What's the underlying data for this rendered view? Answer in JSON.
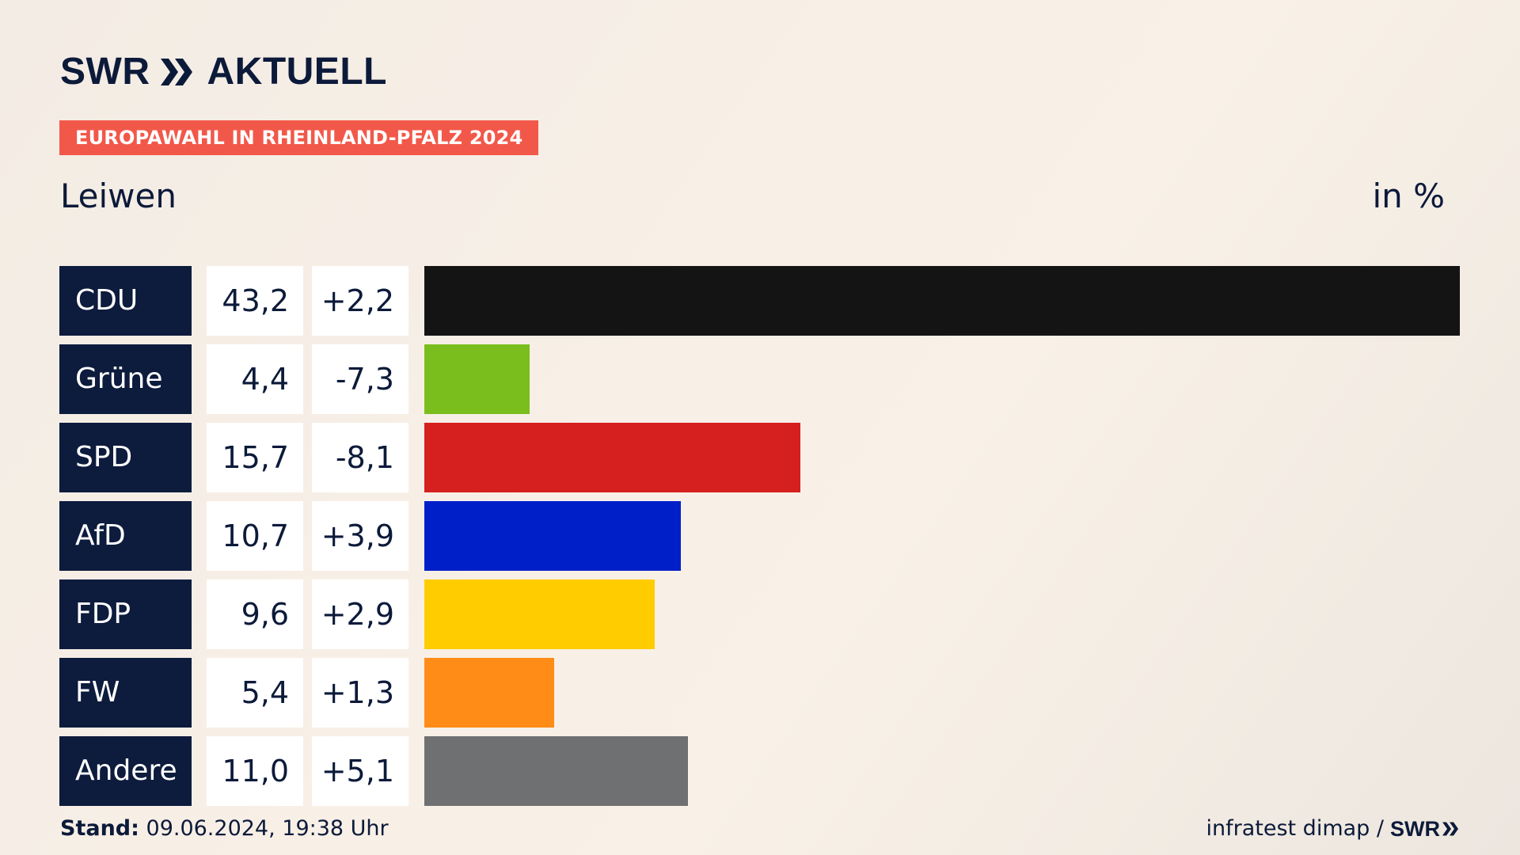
{
  "header": {
    "logo_text": "SWR",
    "logo_suffix": "AKTUELL",
    "banner": "EUROPAWAHL IN RHEINLAND-PFALZ 2024",
    "place": "Leiwen",
    "unit": "in %"
  },
  "chart_data": {
    "type": "bar",
    "orientation": "horizontal",
    "categories": [
      "CDU",
      "Grüne",
      "SPD",
      "AfD",
      "FDP",
      "FW",
      "Andere"
    ],
    "values": [
      43.2,
      4.4,
      15.7,
      10.7,
      9.6,
      5.4,
      11.0
    ],
    "values_label": [
      "43,2",
      "4,4",
      "15,7",
      "10,7",
      "9,6",
      "5,4",
      "11,0"
    ],
    "changes_label": [
      "+2,2",
      "-7,3",
      "-8,1",
      "+3,9",
      "+2,9",
      "+1,3",
      "+5,1"
    ],
    "colors": [
      "#141414",
      "#79be1c",
      "#d61f1f",
      "#001fc8",
      "#ffcc00",
      "#ff8c17",
      "#6f7072"
    ],
    "xlim": [
      0,
      43.2
    ]
  },
  "footer": {
    "stand_label": "Stand:",
    "stand_value": "09.06.2024, 19:38 Uhr",
    "source": "infratest dimap /",
    "source_logo": "SWR"
  }
}
